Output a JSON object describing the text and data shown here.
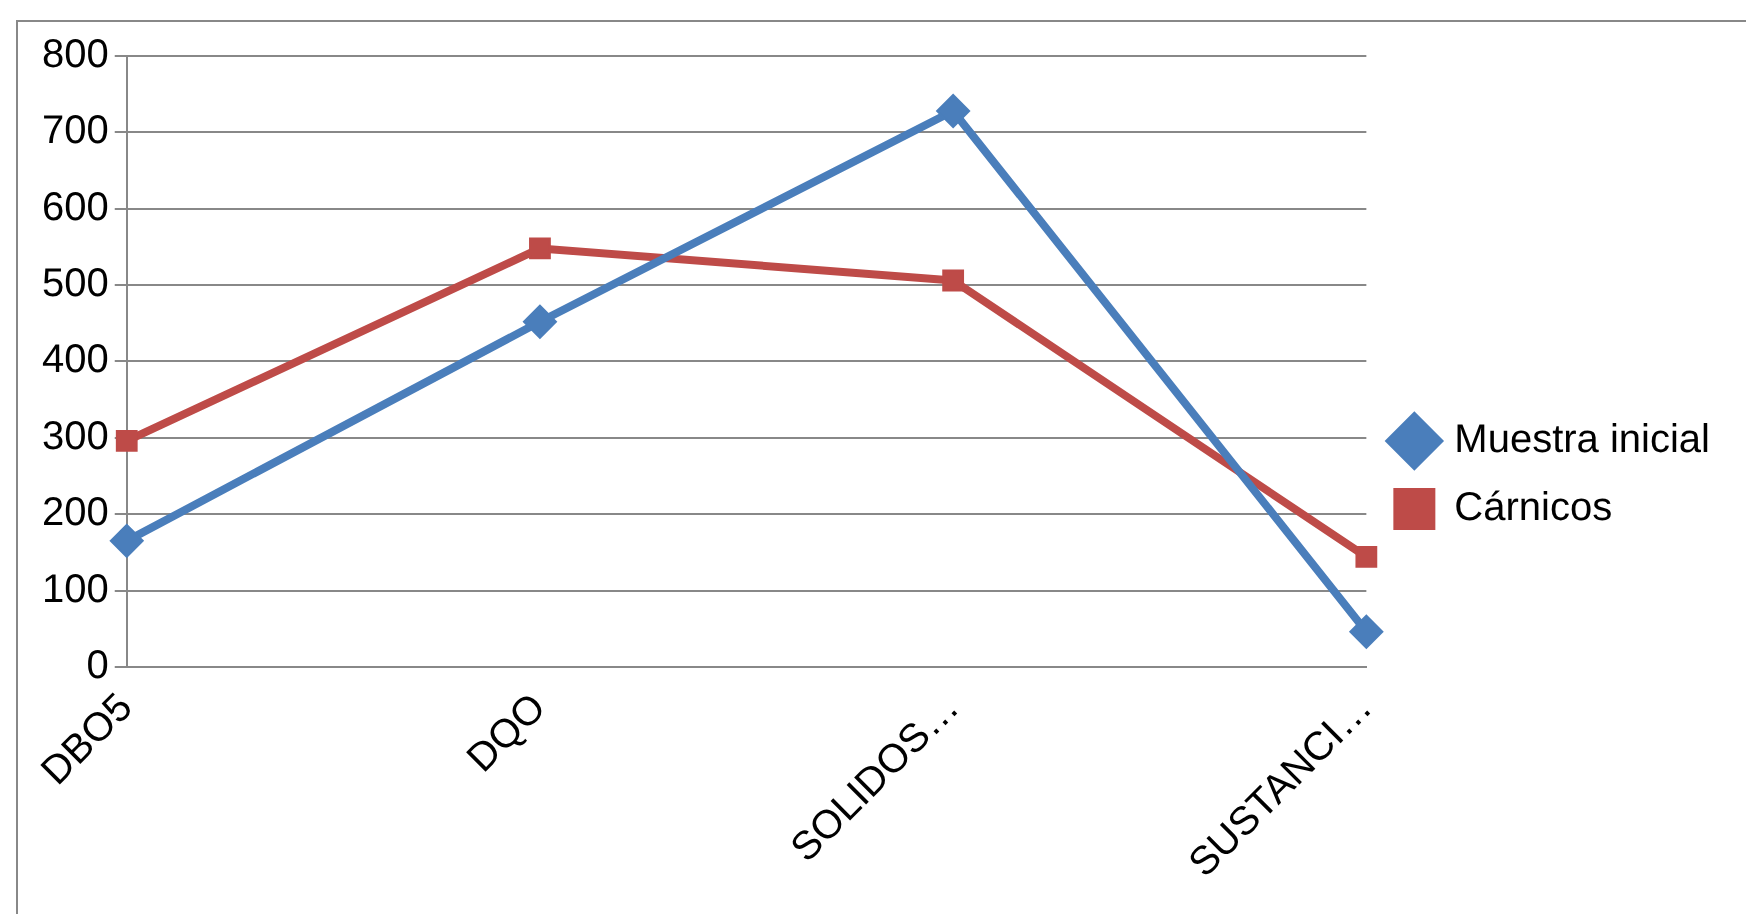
{
  "chart_data": {
    "type": "line",
    "categories": [
      "DBO5",
      "DQO",
      "SOLIDOS…",
      "SUSTANCI…"
    ],
    "series": [
      {
        "name": "Muestra inicial",
        "color": "#4a7ebb",
        "marker": "diamond",
        "values": [
          165,
          452,
          728,
          46
        ]
      },
      {
        "name": "Cárnicos",
        "color": "#be4b48",
        "marker": "square",
        "values": [
          296,
          548,
          506,
          144
        ]
      }
    ],
    "ylim": [
      0,
      800
    ],
    "yticks": [
      0,
      100,
      200,
      300,
      400,
      500,
      600,
      700,
      800
    ],
    "grid": "y",
    "legend": "right"
  }
}
